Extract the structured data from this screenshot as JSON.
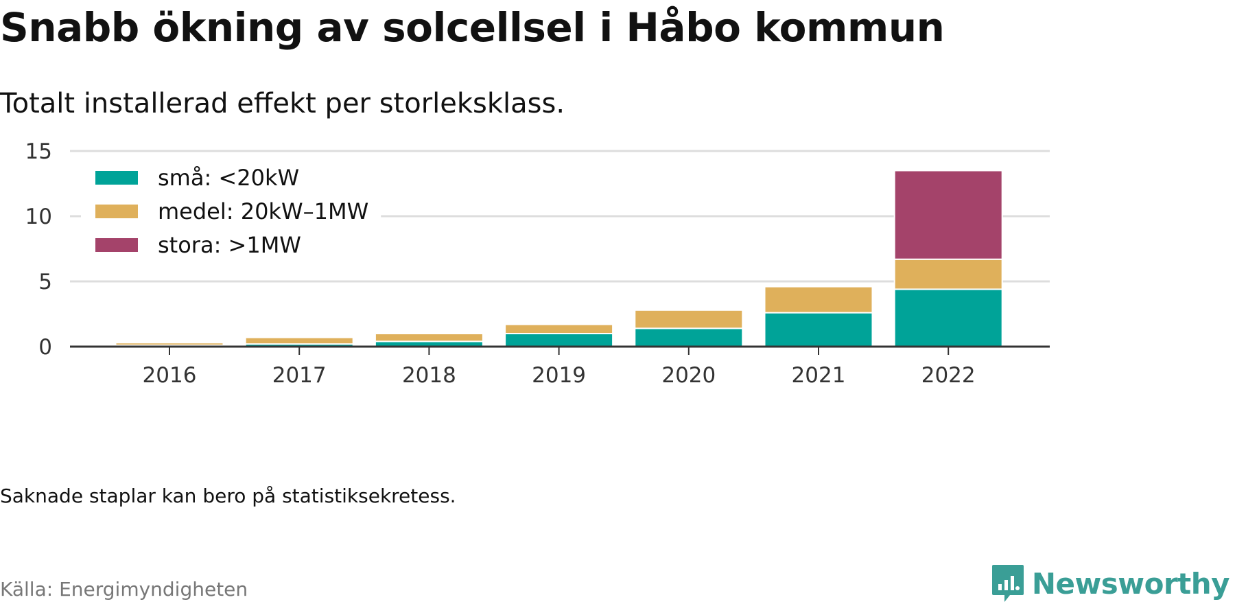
{
  "header": {
    "title": "Snabb ökning av solcellsel i Håbo kommun",
    "subtitle": "Totalt installerad effekt per storleksklass."
  },
  "footer": {
    "note": "Saknade staplar kan bero på statistiksekretess.",
    "source": "Källa: Energimyndigheten",
    "brand": "Newsworthy",
    "brand_color": "#3a9e96"
  },
  "chart_data": {
    "type": "bar",
    "stacked": true,
    "title": "Snabb ökning av solcellsel i Håbo kommun",
    "subtitle": "Totalt installerad effekt per storleksklass.",
    "xlabel": "",
    "ylabel": "",
    "categories": [
      "2016",
      "2017",
      "2018",
      "2019",
      "2020",
      "2021",
      "2022"
    ],
    "ylim": [
      0,
      15
    ],
    "yticks": [
      0,
      5,
      10,
      15
    ],
    "grid": true,
    "legend_position": "top-left",
    "series": [
      {
        "name": "små: <20kW",
        "color": "#00a398",
        "values": [
          0.1,
          0.2,
          0.4,
          1.0,
          1.4,
          2.6,
          4.4
        ]
      },
      {
        "name": "medel: 20kW–1MW",
        "color": "#dfb05b",
        "values": [
          0.2,
          0.5,
          0.6,
          0.7,
          1.4,
          2.0,
          2.3
        ]
      },
      {
        "name": "stora: >1MW",
        "color": "#a4436a",
        "values": [
          0,
          0,
          0,
          0,
          0,
          0,
          6.8
        ]
      }
    ]
  }
}
